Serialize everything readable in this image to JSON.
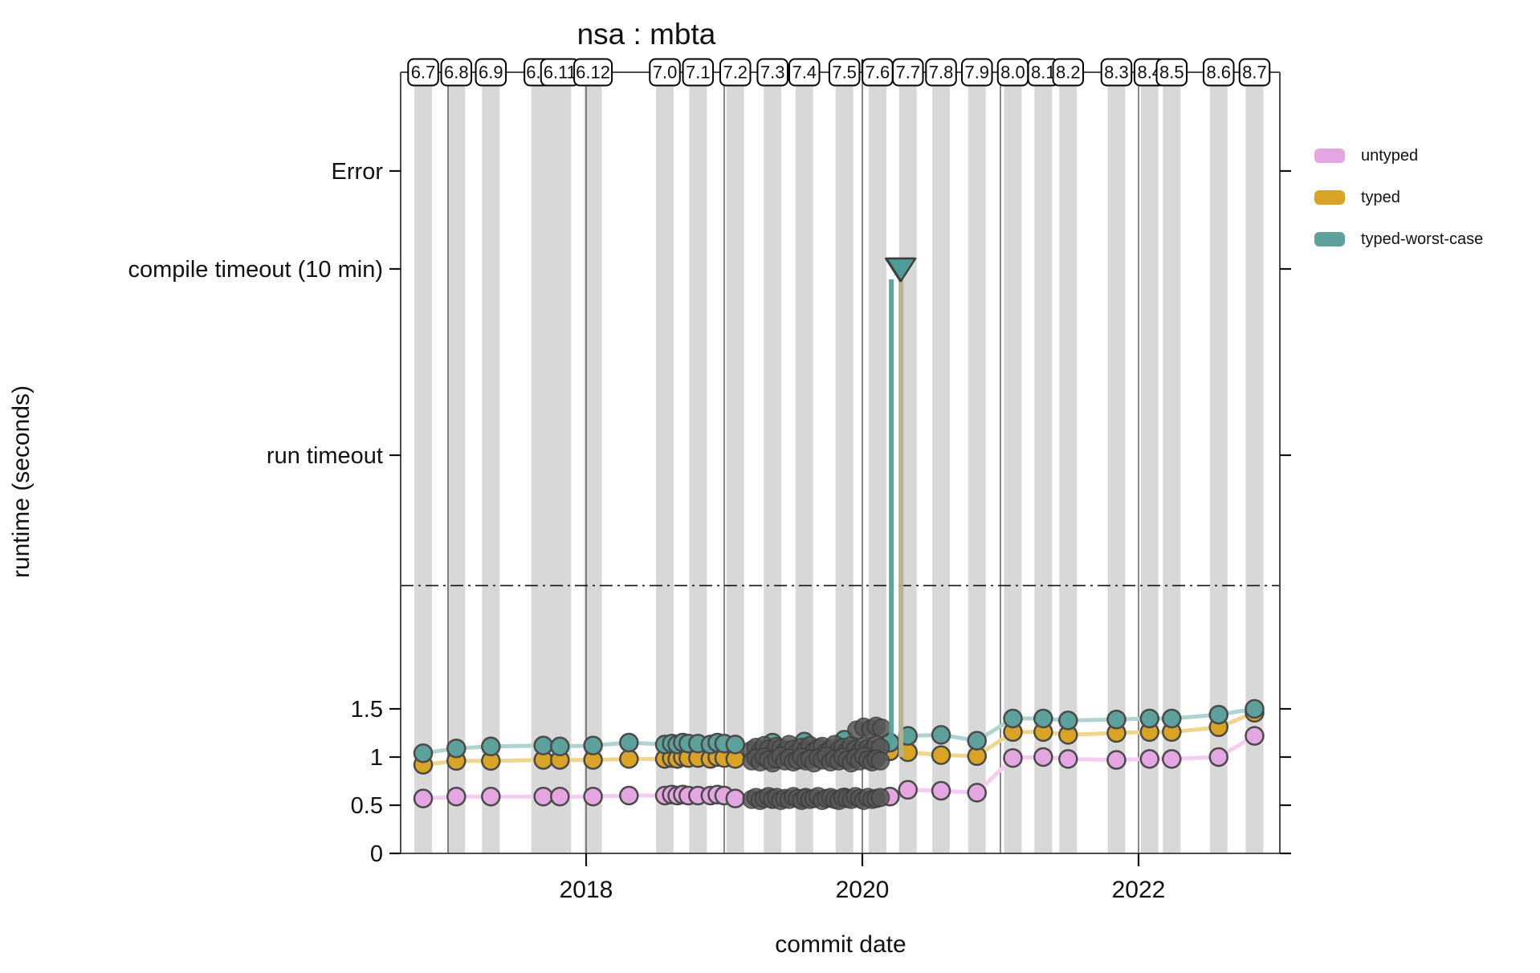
{
  "title": "nsa : mbta",
  "x_axis": {
    "label": "commit date",
    "tick_labels": [
      "2018",
      "2020",
      "2022"
    ],
    "tick_years": [
      2018,
      2020,
      2022
    ],
    "year_gridlines": [
      2017,
      2018,
      2019,
      2020,
      2021,
      2022
    ]
  },
  "y_axis": {
    "label": "runtime (seconds)",
    "numeric_ticks": [
      "0",
      "0.5",
      "1",
      "1.5"
    ],
    "numeric_tick_values": [
      0,
      0.5,
      1,
      1.5
    ],
    "special_ticks": [
      {
        "label": "run timeout",
        "key": "run-timeout"
      },
      {
        "label": "compile timeout (10 min)",
        "key": "compile-timeout"
      },
      {
        "label": "Error",
        "key": "error"
      }
    ]
  },
  "legend": {
    "position": "right",
    "items": [
      {
        "label": "untyped",
        "color": "#E3A6E1"
      },
      {
        "label": "typed",
        "color": "#D9A426"
      },
      {
        "label": "typed-worst-case",
        "color": "#5EA19C"
      }
    ]
  },
  "versions": [
    {
      "label": "6.7",
      "year": 2016.82
    },
    {
      "label": "6.8",
      "year": 2017.06
    },
    {
      "label": "6.9",
      "year": 2017.31
    },
    {
      "label": "6.10",
      "year": 2017.69,
      "band_width": 30
    },
    {
      "label": "6.11",
      "year": 2017.81,
      "band_width": 28
    },
    {
      "label": "6.12",
      "year": 2018.05
    },
    {
      "label": "7.0",
      "year": 2018.57
    },
    {
      "label": "7.1",
      "year": 2018.81
    },
    {
      "label": "7.2",
      "year": 2019.08
    },
    {
      "label": "7.3",
      "year": 2019.35
    },
    {
      "label": "7.4",
      "year": 2019.58
    },
    {
      "label": "7.5",
      "year": 2019.87
    },
    {
      "label": "7.6",
      "year": 2020.11
    },
    {
      "label": "7.7",
      "year": 2020.33
    },
    {
      "label": "7.8",
      "year": 2020.57
    },
    {
      "label": "7.9",
      "year": 2020.83
    },
    {
      "label": "8.0",
      "year": 2021.09
    },
    {
      "label": "8.1",
      "year": 2021.31
    },
    {
      "label": "8.2",
      "year": 2021.49
    },
    {
      "label": "8.3",
      "year": 2021.84
    },
    {
      "label": "8.4",
      "year": 2022.08
    },
    {
      "label": "8.5",
      "year": 2022.24
    },
    {
      "label": "8.6",
      "year": 2022.58
    },
    {
      "label": "8.7",
      "year": 2022.84
    }
  ],
  "chart_data": {
    "type": "line",
    "title": "nsa : mbta",
    "xlabel": "commit date",
    "ylabel": "runtime (seconds)",
    "x_range_years": [
      2016.65,
      2023.03
    ],
    "y_numeric_range_seconds": [
      0,
      1.95
    ],
    "grid": false,
    "legend_position": "right",
    "threshold_line_seconds": 2.78,
    "series": [
      {
        "name": "untyped",
        "marker_color": "#E3A6E1",
        "line_color": "#F5CCF2",
        "points": [
          [
            2016.82,
            0.57
          ],
          [
            2017.06,
            0.59
          ],
          [
            2017.31,
            0.59
          ],
          [
            2017.69,
            0.59
          ],
          [
            2017.81,
            0.59
          ],
          [
            2018.05,
            0.59
          ],
          [
            2018.31,
            0.6
          ],
          [
            2018.57,
            0.6
          ],
          [
            2018.62,
            0.61
          ],
          [
            2018.66,
            0.6
          ],
          [
            2018.7,
            0.61
          ],
          [
            2018.74,
            0.6
          ],
          [
            2018.81,
            0.6
          ],
          [
            2018.9,
            0.6
          ],
          [
            2018.95,
            0.61
          ],
          [
            2019.0,
            0.6
          ],
          [
            2019.08,
            0.57
          ],
          [
            2019.35,
            0.57
          ],
          [
            2019.58,
            0.57
          ],
          [
            2019.87,
            0.58
          ],
          [
            2020.2,
            0.59
          ],
          [
            2020.33,
            0.66
          ],
          [
            2020.57,
            0.65
          ],
          [
            2020.83,
            0.63
          ],
          [
            2021.09,
            0.99
          ],
          [
            2021.31,
            1.0
          ],
          [
            2021.49,
            0.98
          ],
          [
            2021.84,
            0.97
          ],
          [
            2022.08,
            0.98
          ],
          [
            2022.24,
            0.98
          ],
          [
            2022.58,
            1.0
          ],
          [
            2022.84,
            1.22
          ]
        ]
      },
      {
        "name": "typed",
        "marker_color": "#D9A426",
        "line_color": "#F0D58C",
        "points": [
          [
            2016.82,
            0.92
          ],
          [
            2017.06,
            0.96
          ],
          [
            2017.31,
            0.96
          ],
          [
            2017.69,
            0.97
          ],
          [
            2017.81,
            0.97
          ],
          [
            2018.05,
            0.97
          ],
          [
            2018.31,
            0.98
          ],
          [
            2018.57,
            0.98
          ],
          [
            2018.62,
            0.99
          ],
          [
            2018.66,
            0.98
          ],
          [
            2018.7,
            1.0
          ],
          [
            2018.74,
            0.99
          ],
          [
            2018.81,
            0.99
          ],
          [
            2018.9,
            0.98
          ],
          [
            2018.95,
            1.0
          ],
          [
            2019.0,
            0.99
          ],
          [
            2019.08,
            0.98
          ],
          [
            2019.35,
            0.98
          ],
          [
            2019.58,
            0.99
          ],
          [
            2019.87,
            1.0
          ],
          [
            2020.2,
            1.06
          ],
          [
            2020.33,
            1.05
          ],
          [
            2020.57,
            1.02
          ],
          [
            2020.83,
            1.01
          ],
          [
            2021.09,
            1.26
          ],
          [
            2021.31,
            1.26
          ],
          [
            2021.49,
            1.23
          ],
          [
            2021.84,
            1.25
          ],
          [
            2022.08,
            1.26
          ],
          [
            2022.24,
            1.26
          ],
          [
            2022.58,
            1.31
          ],
          [
            2022.84,
            1.46
          ]
        ]
      },
      {
        "name": "typed-worst-case",
        "marker_color": "#5EA19C",
        "line_color": "#AFD3CF",
        "points": [
          [
            2016.82,
            1.04
          ],
          [
            2017.06,
            1.09
          ],
          [
            2017.31,
            1.11
          ],
          [
            2017.69,
            1.12
          ],
          [
            2017.81,
            1.11
          ],
          [
            2018.05,
            1.12
          ],
          [
            2018.31,
            1.15
          ],
          [
            2018.57,
            1.13
          ],
          [
            2018.62,
            1.14
          ],
          [
            2018.66,
            1.13
          ],
          [
            2018.7,
            1.15
          ],
          [
            2018.74,
            1.14
          ],
          [
            2018.81,
            1.14
          ],
          [
            2018.9,
            1.13
          ],
          [
            2018.95,
            1.15
          ],
          [
            2019.0,
            1.14
          ],
          [
            2019.08,
            1.13
          ],
          [
            2019.35,
            1.15
          ],
          [
            2019.58,
            1.16
          ],
          [
            2019.87,
            1.18
          ],
          [
            2020.2,
            1.15
          ],
          [
            2020.33,
            1.22
          ],
          [
            2020.57,
            1.23
          ],
          [
            2020.83,
            1.17
          ],
          [
            2021.09,
            1.4
          ],
          [
            2021.31,
            1.4
          ],
          [
            2021.49,
            1.38
          ],
          [
            2021.84,
            1.39
          ],
          [
            2022.08,
            1.4
          ],
          [
            2022.24,
            1.4
          ],
          [
            2022.58,
            1.44
          ],
          [
            2022.84,
            1.5
          ]
        ]
      }
    ],
    "commit_points": {
      "description": "intermediate commit measurements (dark gray markers)",
      "color": "#575757",
      "rows": [
        {
          "near_series": "typed-worst-case",
          "x_start": 2019.2,
          "x_step": 0.03,
          "values": [
            1.07,
            1.1,
            1.05,
            1.12,
            1.08,
            1.04,
            1.11,
            1.09,
            1.06,
            1.13,
            1.08,
            1.05,
            1.1,
            1.07,
            1.12,
            1.06,
            1.09,
            1.11,
            1.05,
            1.08,
            1.13,
            1.07,
            1.1,
            1.06,
            1.12,
            1.08,
            1.05,
            1.11,
            1.09,
            1.07,
            1.13,
            1.1
          ]
        },
        {
          "near_series": "typed",
          "x_start": 2019.2,
          "x_step": 0.03,
          "values": [
            0.96,
            0.99,
            0.95,
            1.0,
            0.97,
            0.94,
            0.98,
            1.01,
            0.96,
            0.99,
            0.95,
            0.97,
            1.0,
            0.96,
            0.98,
            0.94,
            0.99,
            0.97,
            1.01,
            0.95,
            0.98,
            0.96,
            1.0,
            0.97,
            0.94,
            0.99,
            0.96,
            1.01,
            0.97,
            0.95,
            0.98,
            0.96
          ]
        },
        {
          "near_series": "untyped",
          "x_start": 2019.2,
          "x_step": 0.03,
          "values": [
            0.56,
            0.58,
            0.55,
            0.57,
            0.59,
            0.56,
            0.58,
            0.55,
            0.57,
            0.56,
            0.59,
            0.57,
            0.55,
            0.58,
            0.56,
            0.57,
            0.59,
            0.55,
            0.57,
            0.58,
            0.56,
            0.55,
            0.58,
            0.57,
            0.56,
            0.59,
            0.57,
            0.55,
            0.58,
            0.56,
            0.57,
            0.58
          ]
        }
      ],
      "extra_points": [
        [
          2019.96,
          1.28
        ],
        [
          2020.01,
          1.31
        ],
        [
          2020.06,
          1.29
        ],
        [
          2020.1,
          1.32
        ],
        [
          2020.14,
          1.3
        ]
      ]
    },
    "timeout_markers": [
      {
        "series": "typed-worst-case",
        "year": 2020.21,
        "level": "compile-timeout",
        "base_seconds": 1.15,
        "line_color": "#57A09A",
        "triangle_color": "#4F9D98",
        "triangle_offset": 12
      },
      {
        "series": "commit",
        "year": 2020.28,
        "level": "compile-timeout",
        "base_seconds": 1.0,
        "line_color": "#B5B48C",
        "triangle_color": "#696969",
        "triangle_offset": -1
      }
    ]
  },
  "style": {
    "band_color": "#D8D8D8",
    "year_line_color": "#4A4A4A",
    "axis_color": "#4D4D4D",
    "tick_text_color": "#111111",
    "marker_stroke": "#4A4A4A",
    "box_border": "#000000"
  }
}
